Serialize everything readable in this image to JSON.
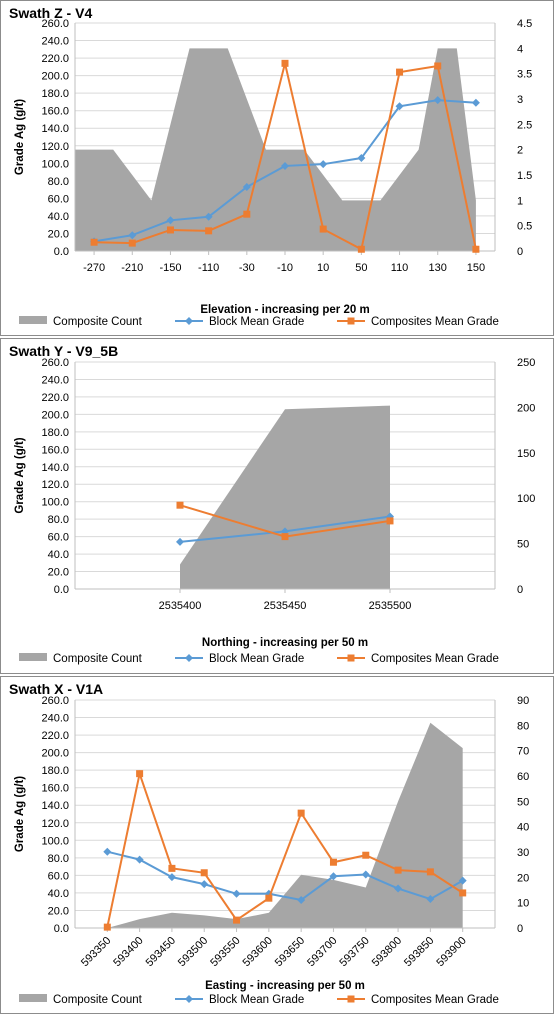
{
  "chart_data": [
    {
      "type": "area",
      "title": "Swath Z - V4",
      "xlabel": "Elevation - increasing per 20 m",
      "ylabel": "Grade Ag (g/t)",
      "categories": [
        "-270",
        "-210",
        "-150",
        "-110",
        "-30",
        "-10",
        "10",
        "50",
        "110",
        "130",
        "150"
      ],
      "ylim": [
        0,
        260
      ],
      "yticks": [
        "0.0",
        "20.0",
        "40.0",
        "60.0",
        "80.0",
        "100.0",
        "120.0",
        "140.0",
        "160.0",
        "180.0",
        "200.0",
        "220.0",
        "240.0",
        "260.0"
      ],
      "y2lim": [
        0,
        4.5
      ],
      "y2ticks": [
        "0",
        "0.5",
        "1",
        "1.5",
        "2",
        "2.5",
        "3",
        "3.5",
        "4",
        "4.5"
      ],
      "series": [
        {
          "name": "Composite Count",
          "axis": "secondary",
          "kind": "area",
          "color": "#a6a6a6",
          "x": [
            -0.5,
            0.5,
            1.5,
            2.5,
            3,
            3.5,
            4.5,
            5,
            5.5,
            6.5,
            7,
            7.5,
            8.5,
            9,
            9.5,
            10
          ],
          "values": [
            2,
            2,
            1,
            4,
            4,
            4,
            2,
            2,
            2,
            1,
            1,
            1,
            2,
            4,
            4,
            1
          ]
        },
        {
          "name": "Block Mean Grade",
          "axis": "primary",
          "kind": "line",
          "color": "#5b9bd5",
          "x": [
            0,
            1,
            2,
            3,
            4,
            5,
            6,
            7,
            8,
            9,
            10
          ],
          "values": [
            11,
            18,
            35,
            39,
            73,
            97,
            99,
            106,
            165,
            172,
            169
          ]
        },
        {
          "name": "Composites Mean Grade",
          "axis": "primary",
          "kind": "line",
          "color": "#ed7d31",
          "x": [
            0,
            1,
            2,
            3,
            4,
            5,
            6,
            7,
            8,
            9,
            10
          ],
          "values": [
            10,
            9,
            24,
            23,
            42,
            214,
            25,
            2,
            204,
            211,
            2
          ]
        }
      ],
      "legend": "bottom",
      "grid": true
    },
    {
      "type": "area",
      "title": "Swath Y - V9_5B",
      "xlabel": "Northing - increasing per 50 m",
      "ylabel": "Grade Ag (g/t)",
      "categories": [
        "2535400",
        "2535450",
        "2535500"
      ],
      "ylim": [
        0,
        260
      ],
      "yticks": [
        "0.0",
        "20.0",
        "40.0",
        "60.0",
        "80.0",
        "100.0",
        "120.0",
        "140.0",
        "160.0",
        "180.0",
        "200.0",
        "220.0",
        "240.0",
        "260.0"
      ],
      "y2lim": [
        0,
        250
      ],
      "y2ticks": [
        "0",
        "50",
        "100",
        "150",
        "200",
        "250"
      ],
      "series": [
        {
          "name": "Composite Count",
          "axis": "secondary",
          "kind": "area",
          "color": "#a6a6a6",
          "x": [
            0,
            1,
            2
          ],
          "values": [
            27,
            198,
            202
          ]
        },
        {
          "name": "Block Mean Grade",
          "axis": "primary",
          "kind": "line",
          "color": "#5b9bd5",
          "x": [
            0,
            1,
            2
          ],
          "values": [
            54,
            66,
            83
          ]
        },
        {
          "name": "Composites Mean Grade",
          "axis": "primary",
          "kind": "line",
          "color": "#ed7d31",
          "x": [
            0,
            1,
            2
          ],
          "values": [
            96,
            60,
            78
          ]
        }
      ],
      "legend": "bottom",
      "grid": true
    },
    {
      "type": "area",
      "title": "Swath X - V1A",
      "xlabel": "Easting - increasing per 50 m",
      "ylabel": "Grade Ag (g/t)",
      "categories": [
        "593350",
        "593400",
        "593450",
        "593500",
        "593550",
        "593600",
        "593650",
        "593700",
        "593750",
        "593800",
        "593850",
        "593900"
      ],
      "ylim": [
        0,
        260
      ],
      "yticks": [
        "0.0",
        "20.0",
        "40.0",
        "60.0",
        "80.0",
        "100.0",
        "120.0",
        "140.0",
        "160.0",
        "180.0",
        "200.0",
        "220.0",
        "240.0",
        "260.0"
      ],
      "y2lim": [
        0,
        90
      ],
      "y2ticks": [
        "0",
        "10",
        "20",
        "30",
        "40",
        "50",
        "60",
        "70",
        "80",
        "90"
      ],
      "series": [
        {
          "name": "Composite Count",
          "axis": "secondary",
          "kind": "area",
          "color": "#a6a6a6",
          "x": [
            0,
            1,
            2,
            3,
            4,
            5,
            6,
            7,
            8,
            9,
            10,
            11
          ],
          "values": [
            0,
            3.5,
            6,
            5,
            3.5,
            6,
            21,
            19,
            16,
            50,
            81,
            71
          ]
        },
        {
          "name": "Block Mean Grade",
          "axis": "primary",
          "kind": "line",
          "color": "#5b9bd5",
          "x": [
            0,
            1,
            2,
            3,
            4,
            5,
            6,
            7,
            8,
            9,
            10,
            11
          ],
          "values": [
            87,
            78,
            58,
            50,
            39,
            39,
            32,
            59,
            61,
            45,
            33,
            54
          ]
        },
        {
          "name": "Composites Mean Grade",
          "axis": "primary",
          "kind": "line",
          "color": "#ed7d31",
          "x": [
            0,
            1,
            2,
            3,
            4,
            5,
            6,
            7,
            8,
            9,
            10,
            11
          ],
          "values": [
            1,
            176,
            68,
            63,
            9,
            34,
            131,
            75,
            83,
            66,
            64,
            40
          ]
        }
      ],
      "legend": "bottom",
      "grid": true
    }
  ]
}
